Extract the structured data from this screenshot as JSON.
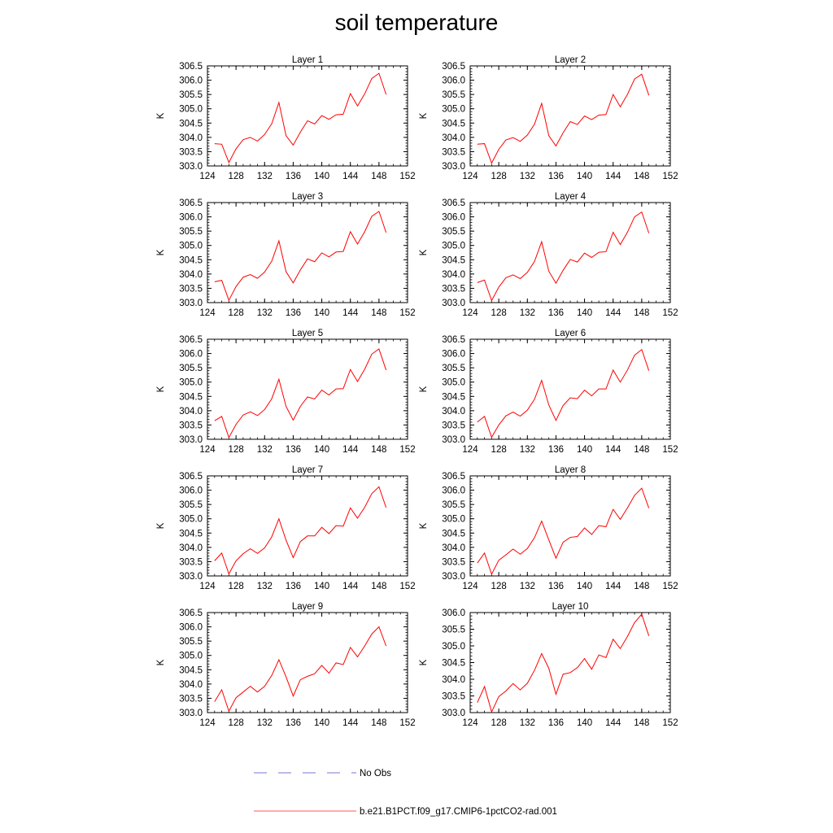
{
  "title": "soil temperature",
  "legend": {
    "items": [
      {
        "label": "No Obs",
        "color": "#7777cc",
        "dash": true
      },
      {
        "label": "b.e21.B1PCT.f09_g17.CMIP6-1pctCO2-rad.001",
        "color": "#ff5555",
        "dash": false
      }
    ]
  },
  "chart_data": [
    {
      "type": "line",
      "title": "Layer 1",
      "ylabel": "K",
      "xlim": [
        124,
        152
      ],
      "ylim": [
        303.0,
        306.5
      ],
      "xticks": [
        "124",
        "128",
        "132",
        "136",
        "140",
        "144",
        "148",
        "152"
      ],
      "yticks": [
        "303.0",
        "303.5",
        "304.0",
        "304.5",
        "305.0",
        "305.5",
        "306.0",
        "306.5"
      ],
      "x": [
        125,
        126,
        127,
        128,
        129,
        130,
        131,
        132,
        133,
        134,
        135,
        136,
        137,
        138,
        139,
        140,
        141,
        142,
        143,
        144,
        145,
        146,
        147,
        148,
        149
      ],
      "series": [
        {
          "values": [
            303.78,
            303.76,
            303.12,
            303.6,
            303.92,
            304.0,
            303.87,
            304.1,
            304.48,
            305.22,
            304.06,
            303.73,
            304.18,
            304.58,
            304.47,
            304.76,
            304.63,
            304.79,
            304.81,
            305.53,
            305.1,
            305.52,
            306.06,
            306.24,
            305.5
          ]
        }
      ]
    },
    {
      "type": "line",
      "title": "Layer 2",
      "ylabel": "K",
      "xlim": [
        124,
        152
      ],
      "ylim": [
        303.0,
        306.5
      ],
      "xticks": [
        "124",
        "128",
        "132",
        "136",
        "140",
        "144",
        "148",
        "152"
      ],
      "yticks": [
        "303.0",
        "303.5",
        "304.0",
        "304.5",
        "305.0",
        "305.5",
        "306.0",
        "306.5"
      ],
      "x": [
        125,
        126,
        127,
        128,
        129,
        130,
        131,
        132,
        133,
        134,
        135,
        136,
        137,
        138,
        139,
        140,
        141,
        142,
        143,
        144,
        145,
        146,
        147,
        148,
        149
      ],
      "series": [
        {
          "values": [
            303.76,
            303.78,
            303.1,
            303.58,
            303.91,
            303.99,
            303.86,
            304.08,
            304.46,
            305.19,
            304.06,
            303.7,
            304.16,
            304.55,
            304.45,
            304.75,
            304.62,
            304.78,
            304.8,
            305.5,
            305.07,
            305.5,
            306.04,
            306.21,
            305.47
          ]
        }
      ]
    },
    {
      "type": "line",
      "title": "Layer 3",
      "ylabel": "K",
      "xlim": [
        124,
        152
      ],
      "ylim": [
        303.0,
        306.5
      ],
      "xticks": [
        "124",
        "128",
        "132",
        "136",
        "140",
        "144",
        "148",
        "152"
      ],
      "yticks": [
        "303.0",
        "303.5",
        "304.0",
        "304.5",
        "305.0",
        "305.5",
        "306.0",
        "306.5"
      ],
      "x": [
        125,
        126,
        127,
        128,
        129,
        130,
        131,
        132,
        133,
        134,
        135,
        136,
        137,
        138,
        139,
        140,
        141,
        142,
        143,
        144,
        145,
        146,
        147,
        148,
        149
      ],
      "series": [
        {
          "values": [
            303.73,
            303.78,
            303.08,
            303.56,
            303.89,
            303.98,
            303.85,
            304.07,
            304.45,
            305.16,
            304.08,
            303.69,
            304.14,
            304.53,
            304.43,
            304.74,
            304.6,
            304.77,
            304.79,
            305.48,
            305.05,
            305.48,
            306.02,
            306.19,
            305.45
          ]
        }
      ]
    },
    {
      "type": "line",
      "title": "Layer 4",
      "ylabel": "K",
      "xlim": [
        124,
        152
      ],
      "ylim": [
        303.0,
        306.5
      ],
      "xticks": [
        "124",
        "128",
        "132",
        "136",
        "140",
        "144",
        "148",
        "152"
      ],
      "yticks": [
        "303.0",
        "303.5",
        "304.0",
        "304.5",
        "305.0",
        "305.5",
        "306.0",
        "306.5"
      ],
      "x": [
        125,
        126,
        127,
        128,
        129,
        130,
        131,
        132,
        133,
        134,
        135,
        136,
        137,
        138,
        139,
        140,
        141,
        142,
        143,
        144,
        145,
        146,
        147,
        148,
        149
      ],
      "series": [
        {
          "values": [
            303.7,
            303.79,
            303.07,
            303.54,
            303.87,
            303.97,
            303.84,
            304.06,
            304.44,
            305.13,
            304.1,
            303.68,
            304.13,
            304.51,
            304.42,
            304.73,
            304.58,
            304.76,
            304.78,
            305.46,
            305.03,
            305.46,
            306.0,
            306.17,
            305.43
          ]
        }
      ]
    },
    {
      "type": "line",
      "title": "Layer 5",
      "ylabel": "K",
      "xlim": [
        124,
        152
      ],
      "ylim": [
        303.0,
        306.5
      ],
      "xticks": [
        "124",
        "128",
        "132",
        "136",
        "140",
        "144",
        "148",
        "152"
      ],
      "yticks": [
        "303.0",
        "303.5",
        "304.0",
        "304.5",
        "305.0",
        "305.5",
        "306.0",
        "306.5"
      ],
      "x": [
        125,
        126,
        127,
        128,
        129,
        130,
        131,
        132,
        133,
        134,
        135,
        136,
        137,
        138,
        139,
        140,
        141,
        142,
        143,
        144,
        145,
        146,
        147,
        148,
        149
      ],
      "series": [
        {
          "values": [
            303.65,
            303.8,
            303.06,
            303.52,
            303.85,
            303.96,
            303.83,
            304.04,
            304.42,
            305.1,
            304.15,
            303.67,
            304.15,
            304.48,
            304.41,
            304.72,
            304.55,
            304.76,
            304.77,
            305.44,
            305.02,
            305.45,
            305.98,
            306.16,
            305.42
          ]
        }
      ]
    },
    {
      "type": "line",
      "title": "Layer 6",
      "ylabel": "K",
      "xlim": [
        124,
        152
      ],
      "ylim": [
        303.0,
        306.5
      ],
      "xticks": [
        "124",
        "128",
        "132",
        "136",
        "140",
        "144",
        "148",
        "152"
      ],
      "yticks": [
        "303.0",
        "303.5",
        "304.0",
        "304.5",
        "305.0",
        "305.5",
        "306.0",
        "306.5"
      ],
      "x": [
        125,
        126,
        127,
        128,
        129,
        130,
        131,
        132,
        133,
        134,
        135,
        136,
        137,
        138,
        139,
        140,
        141,
        142,
        143,
        144,
        145,
        146,
        147,
        148,
        149
      ],
      "series": [
        {
          "values": [
            303.6,
            303.8,
            303.07,
            303.5,
            303.82,
            303.95,
            303.81,
            304.02,
            304.4,
            305.06,
            304.2,
            303.66,
            304.18,
            304.45,
            304.42,
            304.72,
            304.52,
            304.76,
            304.76,
            305.42,
            305.0,
            305.42,
            305.94,
            306.14,
            305.4
          ]
        }
      ]
    },
    {
      "type": "line",
      "title": "Layer 7",
      "ylabel": "K",
      "xlim": [
        124,
        152
      ],
      "ylim": [
        303.0,
        306.5
      ],
      "xticks": [
        "124",
        "128",
        "132",
        "136",
        "140",
        "144",
        "148",
        "152"
      ],
      "yticks": [
        "303.0",
        "303.5",
        "304.0",
        "304.5",
        "305.0",
        "305.5",
        "306.0",
        "306.5"
      ],
      "x": [
        125,
        126,
        127,
        128,
        129,
        130,
        131,
        132,
        133,
        134,
        135,
        136,
        137,
        138,
        139,
        140,
        141,
        142,
        143,
        144,
        145,
        146,
        147,
        148,
        149
      ],
      "series": [
        {
          "values": [
            303.53,
            303.8,
            303.07,
            303.53,
            303.78,
            303.95,
            303.79,
            303.98,
            304.37,
            305.0,
            304.25,
            303.64,
            304.2,
            304.4,
            304.4,
            304.7,
            304.48,
            304.76,
            304.74,
            305.38,
            305.02,
            305.4,
            305.88,
            306.12,
            305.39
          ]
        }
      ]
    },
    {
      "type": "line",
      "title": "Layer 8",
      "ylabel": "K",
      "xlim": [
        124,
        152
      ],
      "ylim": [
        303.0,
        306.5
      ],
      "xticks": [
        "124",
        "128",
        "132",
        "136",
        "140",
        "144",
        "148",
        "152"
      ],
      "yticks": [
        "303.0",
        "303.5",
        "304.0",
        "304.5",
        "305.0",
        "305.5",
        "306.0",
        "306.5"
      ],
      "x": [
        125,
        126,
        127,
        128,
        129,
        130,
        131,
        132,
        133,
        134,
        135,
        136,
        137,
        138,
        139,
        140,
        141,
        142,
        143,
        144,
        145,
        146,
        147,
        148,
        149
      ],
      "series": [
        {
          "values": [
            303.45,
            303.8,
            303.06,
            303.55,
            303.74,
            303.94,
            303.76,
            303.96,
            304.34,
            304.92,
            304.26,
            303.62,
            304.18,
            304.35,
            304.38,
            304.68,
            304.45,
            304.76,
            304.72,
            305.33,
            304.98,
            305.38,
            305.82,
            306.07,
            305.37
          ]
        }
      ]
    },
    {
      "type": "line",
      "title": "Layer 9",
      "ylabel": "K",
      "xlim": [
        124,
        152
      ],
      "ylim": [
        303.0,
        306.5
      ],
      "xticks": [
        "124",
        "128",
        "132",
        "136",
        "140",
        "144",
        "148",
        "152"
      ],
      "yticks": [
        "303.0",
        "303.5",
        "304.0",
        "304.5",
        "305.0",
        "305.5",
        "306.0",
        "306.5"
      ],
      "x": [
        125,
        126,
        127,
        128,
        129,
        130,
        131,
        132,
        133,
        134,
        135,
        136,
        137,
        138,
        139,
        140,
        141,
        142,
        143,
        144,
        145,
        146,
        147,
        148,
        149
      ],
      "series": [
        {
          "values": [
            303.38,
            303.8,
            303.05,
            303.52,
            303.72,
            303.92,
            303.72,
            303.92,
            304.3,
            304.85,
            304.25,
            303.58,
            304.15,
            304.27,
            304.36,
            304.65,
            304.38,
            304.74,
            304.68,
            305.28,
            304.95,
            305.33,
            305.75,
            306.0,
            305.33
          ]
        }
      ]
    },
    {
      "type": "line",
      "title": "Layer 10",
      "ylabel": "K",
      "xlim": [
        124,
        152
      ],
      "ylim": [
        303.0,
        306.0
      ],
      "xticks": [
        "124",
        "128",
        "132",
        "136",
        "140",
        "144",
        "148",
        "152"
      ],
      "yticks": [
        "303.0",
        "303.5",
        "304.0",
        "304.5",
        "305.0",
        "305.5",
        "306.0"
      ],
      "x": [
        125,
        126,
        127,
        128,
        129,
        130,
        131,
        132,
        133,
        134,
        135,
        136,
        137,
        138,
        139,
        140,
        141,
        142,
        143,
        144,
        145,
        146,
        147,
        148,
        149
      ],
      "series": [
        {
          "values": [
            303.3,
            303.78,
            303.02,
            303.48,
            303.65,
            303.87,
            303.68,
            303.88,
            304.27,
            304.77,
            304.33,
            303.55,
            304.15,
            304.2,
            304.35,
            304.62,
            304.3,
            304.73,
            304.65,
            305.2,
            304.92,
            305.28,
            305.7,
            305.95,
            305.3
          ]
        }
      ]
    }
  ]
}
